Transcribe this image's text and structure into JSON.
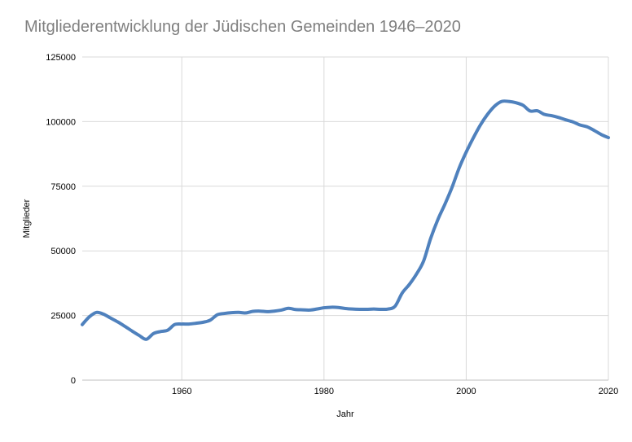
{
  "chart_data": {
    "type": "line",
    "title": "Mitgliederentwicklung der Jüdischen Gemeinden 1946–2020",
    "xlabel": "Jahr",
    "ylabel": "Mitglieder",
    "xlim": [
      1946,
      2020
    ],
    "ylim": [
      0,
      125000
    ],
    "x_ticks": [
      1960,
      1980,
      2000,
      2020
    ],
    "y_ticks": [
      0,
      25000,
      50000,
      75000,
      100000,
      125000
    ],
    "x_tick_labels": [
      "1960",
      "1980",
      "2000",
      "2020"
    ],
    "y_tick_labels": [
      "0",
      "25000",
      "50000",
      "75000",
      "100000",
      "125000"
    ],
    "grid": true,
    "line_color": "#4f81bd",
    "series": [
      {
        "x": [
          1946,
          1947,
          1948,
          1949,
          1950,
          1951,
          1952,
          1953,
          1954,
          1955,
          1956,
          1957,
          1958,
          1959,
          1960,
          1961,
          1962,
          1963,
          1964,
          1965,
          1966,
          1967,
          1968,
          1969,
          1970,
          1971,
          1972,
          1973,
          1974,
          1975,
          1976,
          1977,
          1978,
          1979,
          1980,
          1981,
          1982,
          1983,
          1984,
          1985,
          1986,
          1987,
          1988,
          1989,
          1990,
          1991,
          1992,
          1993,
          1994,
          1995,
          1996,
          1997,
          1998,
          1999,
          2000,
          2001,
          2002,
          2003,
          2004,
          2005,
          2006,
          2007,
          2008,
          2009,
          2010,
          2011,
          2012,
          2013,
          2014,
          2015,
          2016,
          2017,
          2018,
          2019,
          2020
        ],
        "values": [
          21500,
          24500,
          26200,
          25500,
          24000,
          22500,
          20800,
          19000,
          17300,
          15800,
          18000,
          18800,
          19300,
          21500,
          21700,
          21700,
          22000,
          22400,
          23200,
          25300,
          25800,
          26100,
          26200,
          26000,
          26600,
          26700,
          26500,
          26700,
          27100,
          27800,
          27300,
          27200,
          27100,
          27500,
          28000,
          28200,
          28100,
          27700,
          27500,
          27400,
          27400,
          27500,
          27400,
          27500,
          28600,
          33700,
          37000,
          41000,
          46000,
          54800,
          62000,
          68000,
          74500,
          82000,
          88200,
          93700,
          98700,
          102800,
          106000,
          107800,
          107800,
          107300,
          106300,
          104100,
          104200,
          102800,
          102300,
          101600,
          100700,
          99900,
          98700,
          98000,
          96600,
          95000,
          93800
        ]
      }
    ]
  }
}
